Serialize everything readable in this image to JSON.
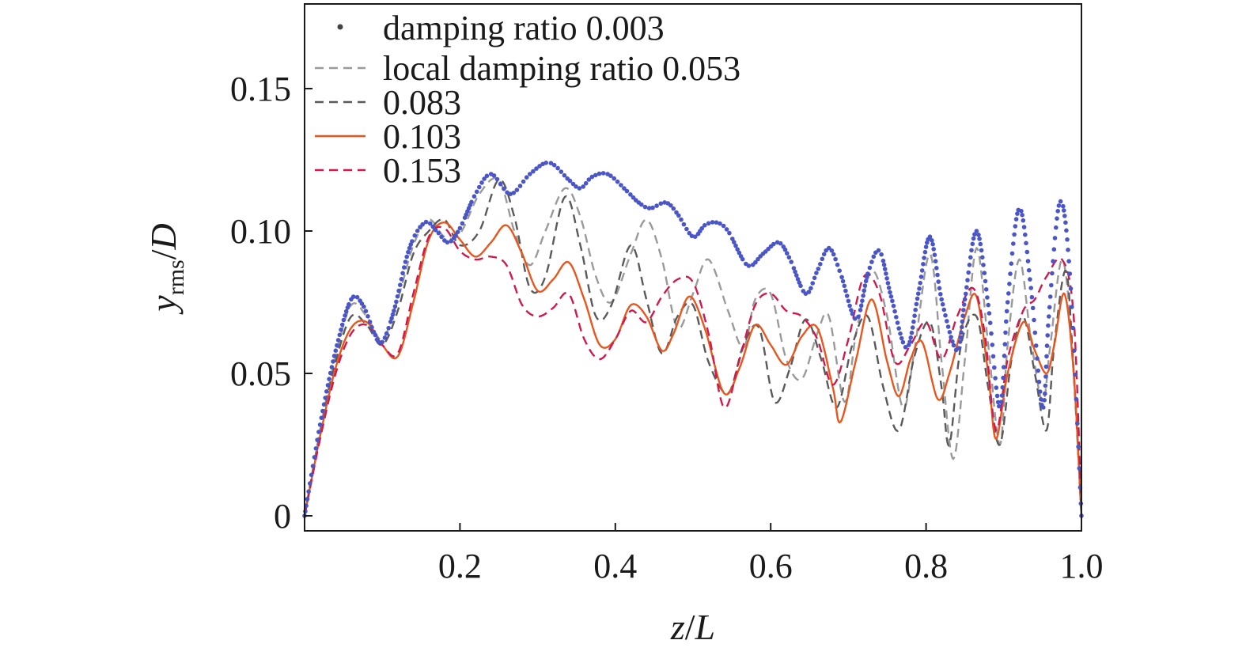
{
  "chart_data": {
    "type": "line",
    "x_label": {
      "var": "z",
      "sep": "/",
      "denom": "L"
    },
    "y_label": {
      "var": "y",
      "sub": "rms",
      "sep": "/",
      "denom": "D"
    },
    "xlim": [
      0,
      1.0
    ],
    "ylim": [
      0,
      0.18
    ],
    "x_ticks": [
      {
        "value": 0.2,
        "label": "0.2"
      },
      {
        "value": 0.4,
        "label": "0.4"
      },
      {
        "value": 0.6,
        "label": "0.6"
      },
      {
        "value": 0.8,
        "label": "0.8"
      },
      {
        "value": 1.0,
        "label": "1.0"
      }
    ],
    "y_ticks": [
      {
        "value": 0,
        "label": "0"
      },
      {
        "value": 0.05,
        "label": "0.05"
      },
      {
        "value": 0.1,
        "label": "0.10"
      },
      {
        "value": 0.15,
        "label": "0.15"
      }
    ],
    "grid": false,
    "legend_position": "top-left",
    "series": [
      {
        "name": "damping ratio 0.003",
        "style": "dots",
        "color": "#4a55c8",
        "points": [
          [
            0,
            0
          ],
          [
            0.02,
            0.032
          ],
          [
            0.04,
            0.058
          ],
          [
            0.06,
            0.076
          ],
          [
            0.075,
            0.074
          ],
          [
            0.09,
            0.064
          ],
          [
            0.1,
            0.061
          ],
          [
            0.115,
            0.072
          ],
          [
            0.135,
            0.094
          ],
          [
            0.155,
            0.103
          ],
          [
            0.17,
            0.1
          ],
          [
            0.185,
            0.096
          ],
          [
            0.2,
            0.101
          ],
          [
            0.22,
            0.113
          ],
          [
            0.24,
            0.12
          ],
          [
            0.265,
            0.113
          ],
          [
            0.29,
            0.12
          ],
          [
            0.315,
            0.124
          ],
          [
            0.34,
            0.118
          ],
          [
            0.355,
            0.115
          ],
          [
            0.37,
            0.119
          ],
          [
            0.39,
            0.12
          ],
          [
            0.415,
            0.114
          ],
          [
            0.43,
            0.11
          ],
          [
            0.445,
            0.108
          ],
          [
            0.465,
            0.11
          ],
          [
            0.48,
            0.106
          ],
          [
            0.5,
            0.098
          ],
          [
            0.515,
            0.102
          ],
          [
            0.53,
            0.103
          ],
          [
            0.545,
            0.1
          ],
          [
            0.57,
            0.088
          ],
          [
            0.59,
            0.092
          ],
          [
            0.61,
            0.096
          ],
          [
            0.625,
            0.09
          ],
          [
            0.645,
            0.078
          ],
          [
            0.66,
            0.086
          ],
          [
            0.675,
            0.094
          ],
          [
            0.69,
            0.085
          ],
          [
            0.71,
            0.069
          ],
          [
            0.725,
            0.085
          ],
          [
            0.74,
            0.093
          ],
          [
            0.755,
            0.077
          ],
          [
            0.775,
            0.059
          ],
          [
            0.79,
            0.078
          ],
          [
            0.805,
            0.098
          ],
          [
            0.82,
            0.076
          ],
          [
            0.84,
            0.058
          ],
          [
            0.85,
            0.076
          ],
          [
            0.865,
            0.1
          ],
          [
            0.88,
            0.074
          ],
          [
            0.895,
            0.038
          ],
          [
            0.905,
            0.075
          ],
          [
            0.92,
            0.108
          ],
          [
            0.935,
            0.08
          ],
          [
            0.95,
            0.038
          ],
          [
            0.958,
            0.07
          ],
          [
            0.972,
            0.11
          ],
          [
            0.985,
            0.085
          ],
          [
            1.0,
            0
          ]
        ]
      },
      {
        "name": "local damping ratio 0.053",
        "style": "dashed",
        "color": "#9a9a9a",
        "points": [
          [
            0,
            0
          ],
          [
            0.02,
            0.03
          ],
          [
            0.04,
            0.056
          ],
          [
            0.06,
            0.074
          ],
          [
            0.08,
            0.07
          ],
          [
            0.1,
            0.062
          ],
          [
            0.12,
            0.076
          ],
          [
            0.14,
            0.095
          ],
          [
            0.16,
            0.104
          ],
          [
            0.18,
            0.098
          ],
          [
            0.2,
            0.099
          ],
          [
            0.225,
            0.113
          ],
          [
            0.25,
            0.118
          ],
          [
            0.27,
            0.1
          ],
          [
            0.29,
            0.088
          ],
          [
            0.31,
            0.1
          ],
          [
            0.335,
            0.115
          ],
          [
            0.355,
            0.105
          ],
          [
            0.375,
            0.084
          ],
          [
            0.395,
            0.075
          ],
          [
            0.42,
            0.092
          ],
          [
            0.44,
            0.104
          ],
          [
            0.46,
            0.09
          ],
          [
            0.48,
            0.066
          ],
          [
            0.5,
            0.078
          ],
          [
            0.52,
            0.09
          ],
          [
            0.545,
            0.072
          ],
          [
            0.565,
            0.059
          ],
          [
            0.58,
            0.076
          ],
          [
            0.6,
            0.078
          ],
          [
            0.62,
            0.055
          ],
          [
            0.64,
            0.048
          ],
          [
            0.66,
            0.064
          ],
          [
            0.675,
            0.07
          ],
          [
            0.695,
            0.04
          ],
          [
            0.71,
            0.064
          ],
          [
            0.73,
            0.086
          ],
          [
            0.75,
            0.07
          ],
          [
            0.77,
            0.038
          ],
          [
            0.785,
            0.058
          ],
          [
            0.805,
            0.092
          ],
          [
            0.82,
            0.054
          ],
          [
            0.835,
            0.02
          ],
          [
            0.85,
            0.055
          ],
          [
            0.865,
            0.094
          ],
          [
            0.88,
            0.06
          ],
          [
            0.895,
            0.025
          ],
          [
            0.905,
            0.06
          ],
          [
            0.92,
            0.09
          ],
          [
            0.935,
            0.062
          ],
          [
            0.95,
            0.04
          ],
          [
            0.96,
            0.06
          ],
          [
            0.975,
            0.09
          ],
          [
            0.988,
            0.06
          ],
          [
            1.0,
            0
          ]
        ]
      },
      {
        "name": "0.083",
        "style": "dashed",
        "color": "#5a5a5a",
        "points": [
          [
            0,
            0
          ],
          [
            0.02,
            0.029
          ],
          [
            0.04,
            0.054
          ],
          [
            0.06,
            0.07
          ],
          [
            0.08,
            0.067
          ],
          [
            0.1,
            0.06
          ],
          [
            0.12,
            0.072
          ],
          [
            0.14,
            0.092
          ],
          [
            0.16,
            0.1
          ],
          [
            0.18,
            0.104
          ],
          [
            0.2,
            0.095
          ],
          [
            0.225,
            0.1
          ],
          [
            0.25,
            0.118
          ],
          [
            0.27,
            0.105
          ],
          [
            0.29,
            0.08
          ],
          [
            0.31,
            0.084
          ],
          [
            0.335,
            0.112
          ],
          [
            0.355,
            0.095
          ],
          [
            0.375,
            0.07
          ],
          [
            0.395,
            0.074
          ],
          [
            0.42,
            0.095
          ],
          [
            0.44,
            0.076
          ],
          [
            0.46,
            0.057
          ],
          [
            0.48,
            0.07
          ],
          [
            0.5,
            0.074
          ],
          [
            0.52,
            0.054
          ],
          [
            0.545,
            0.043
          ],
          [
            0.565,
            0.06
          ],
          [
            0.585,
            0.066
          ],
          [
            0.605,
            0.04
          ],
          [
            0.625,
            0.052
          ],
          [
            0.645,
            0.069
          ],
          [
            0.665,
            0.055
          ],
          [
            0.685,
            0.038
          ],
          [
            0.705,
            0.06
          ],
          [
            0.725,
            0.07
          ],
          [
            0.745,
            0.045
          ],
          [
            0.765,
            0.03
          ],
          [
            0.785,
            0.056
          ],
          [
            0.805,
            0.068
          ],
          [
            0.82,
            0.045
          ],
          [
            0.83,
            0.025
          ],
          [
            0.845,
            0.06
          ],
          [
            0.865,
            0.07
          ],
          [
            0.88,
            0.045
          ],
          [
            0.895,
            0.025
          ],
          [
            0.91,
            0.055
          ],
          [
            0.925,
            0.07
          ],
          [
            0.94,
            0.05
          ],
          [
            0.955,
            0.03
          ],
          [
            0.965,
            0.06
          ],
          [
            0.98,
            0.086
          ],
          [
            0.99,
            0.05
          ],
          [
            1.0,
            0
          ]
        ]
      },
      {
        "name": "0.103",
        "style": "solid",
        "color": "#e8561e",
        "points": [
          [
            0,
            0
          ],
          [
            0.02,
            0.028
          ],
          [
            0.04,
            0.052
          ],
          [
            0.06,
            0.066
          ],
          [
            0.08,
            0.068
          ],
          [
            0.1,
            0.06
          ],
          [
            0.12,
            0.056
          ],
          [
            0.14,
            0.075
          ],
          [
            0.16,
            0.097
          ],
          [
            0.18,
            0.103
          ],
          [
            0.2,
            0.097
          ],
          [
            0.22,
            0.091
          ],
          [
            0.24,
            0.096
          ],
          [
            0.26,
            0.102
          ],
          [
            0.28,
            0.092
          ],
          [
            0.3,
            0.079
          ],
          [
            0.32,
            0.083
          ],
          [
            0.34,
            0.089
          ],
          [
            0.36,
            0.076
          ],
          [
            0.38,
            0.06
          ],
          [
            0.4,
            0.062
          ],
          [
            0.42,
            0.074
          ],
          [
            0.44,
            0.07
          ],
          [
            0.46,
            0.058
          ],
          [
            0.475,
            0.064
          ],
          [
            0.495,
            0.077
          ],
          [
            0.515,
            0.066
          ],
          [
            0.54,
            0.043
          ],
          [
            0.56,
            0.052
          ],
          [
            0.58,
            0.067
          ],
          [
            0.6,
            0.06
          ],
          [
            0.62,
            0.053
          ],
          [
            0.64,
            0.063
          ],
          [
            0.66,
            0.066
          ],
          [
            0.68,
            0.045
          ],
          [
            0.69,
            0.033
          ],
          [
            0.71,
            0.055
          ],
          [
            0.73,
            0.076
          ],
          [
            0.75,
            0.054
          ],
          [
            0.765,
            0.042
          ],
          [
            0.78,
            0.055
          ],
          [
            0.795,
            0.061
          ],
          [
            0.815,
            0.041
          ],
          [
            0.83,
            0.05
          ],
          [
            0.85,
            0.07
          ],
          [
            0.865,
            0.077
          ],
          [
            0.88,
            0.05
          ],
          [
            0.89,
            0.027
          ],
          [
            0.905,
            0.05
          ],
          [
            0.925,
            0.068
          ],
          [
            0.94,
            0.058
          ],
          [
            0.955,
            0.05
          ],
          [
            0.965,
            0.06
          ],
          [
            0.978,
            0.078
          ],
          [
            0.99,
            0.05
          ],
          [
            1.0,
            0
          ]
        ]
      },
      {
        "name": "0.153",
        "style": "dashed",
        "color": "#d01a4e",
        "points": [
          [
            0,
            0
          ],
          [
            0.02,
            0.027
          ],
          [
            0.04,
            0.05
          ],
          [
            0.06,
            0.064
          ],
          [
            0.08,
            0.067
          ],
          [
            0.1,
            0.06
          ],
          [
            0.12,
            0.057
          ],
          [
            0.14,
            0.078
          ],
          [
            0.16,
            0.098
          ],
          [
            0.18,
            0.101
          ],
          [
            0.2,
            0.093
          ],
          [
            0.22,
            0.09
          ],
          [
            0.24,
            0.091
          ],
          [
            0.26,
            0.088
          ],
          [
            0.28,
            0.074
          ],
          [
            0.3,
            0.07
          ],
          [
            0.32,
            0.073
          ],
          [
            0.34,
            0.078
          ],
          [
            0.36,
            0.062
          ],
          [
            0.38,
            0.055
          ],
          [
            0.4,
            0.062
          ],
          [
            0.42,
            0.072
          ],
          [
            0.44,
            0.068
          ],
          [
            0.46,
            0.077
          ],
          [
            0.48,
            0.083
          ],
          [
            0.5,
            0.082
          ],
          [
            0.52,
            0.064
          ],
          [
            0.54,
            0.038
          ],
          [
            0.56,
            0.055
          ],
          [
            0.58,
            0.074
          ],
          [
            0.6,
            0.078
          ],
          [
            0.62,
            0.072
          ],
          [
            0.64,
            0.07
          ],
          [
            0.66,
            0.062
          ],
          [
            0.68,
            0.046
          ],
          [
            0.7,
            0.062
          ],
          [
            0.72,
            0.084
          ],
          [
            0.74,
            0.078
          ],
          [
            0.76,
            0.054
          ],
          [
            0.78,
            0.06
          ],
          [
            0.8,
            0.068
          ],
          [
            0.82,
            0.055
          ],
          [
            0.84,
            0.07
          ],
          [
            0.86,
            0.08
          ],
          [
            0.875,
            0.065
          ],
          [
            0.89,
            0.03
          ],
          [
            0.905,
            0.055
          ],
          [
            0.925,
            0.072
          ],
          [
            0.94,
            0.076
          ],
          [
            0.955,
            0.084
          ],
          [
            0.975,
            0.09
          ],
          [
            0.99,
            0.07
          ],
          [
            1.0,
            0
          ]
        ]
      }
    ]
  }
}
